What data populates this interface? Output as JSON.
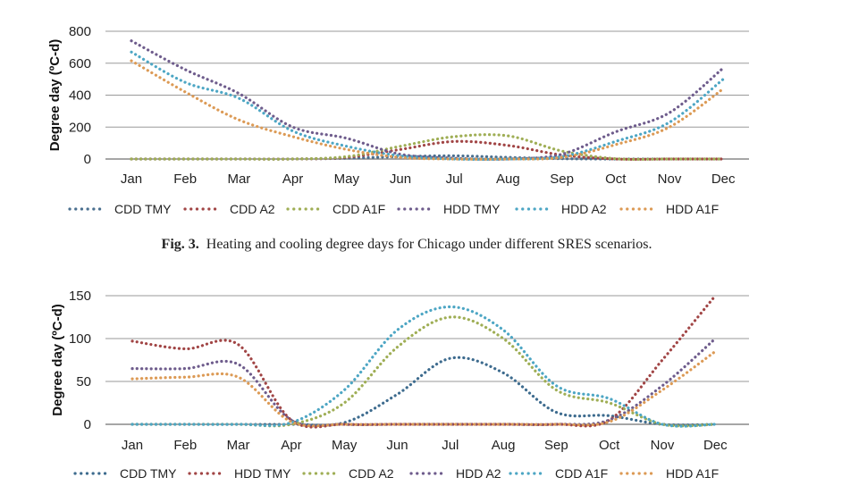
{
  "caption": {
    "label": "Fig. 3.",
    "text": "Heating and cooling degree days for Chicago under different SRES scenarios."
  },
  "chart_data": [
    {
      "type": "line",
      "title": "",
      "xlabel": "",
      "ylabel": "Degree day (ºC-d)",
      "ylim": [
        0,
        800
      ],
      "yticks": [
        "0",
        "200",
        "400",
        "600",
        "800"
      ],
      "grid": true,
      "legend_position": "bottom",
      "categories": [
        "Jan",
        "Feb",
        "Mar",
        "Apr",
        "May",
        "Jun",
        "Jul",
        "Aug",
        "Sep",
        "Oct",
        "Nov",
        "Dec"
      ],
      "series": [
        {
          "name": "CDD TMY",
          "color": "#4a6f8f",
          "values": [
            0,
            0,
            0,
            0,
            5,
            15,
            20,
            10,
            2,
            0,
            0,
            0
          ]
        },
        {
          "name": "CDD A2",
          "color": "#a14545",
          "values": [
            0,
            0,
            0,
            0,
            10,
            60,
            110,
            85,
            25,
            0,
            0,
            0
          ]
        },
        {
          "name": "CDD A1F",
          "color": "#9fae55",
          "values": [
            0,
            0,
            0,
            0,
            15,
            80,
            140,
            145,
            50,
            2,
            0,
            0
          ]
        },
        {
          "name": "HDD TMY",
          "color": "#6e5c8c",
          "values": [
            740,
            560,
            410,
            200,
            130,
            30,
            5,
            0,
            30,
            170,
            290,
            570
          ]
        },
        {
          "name": "HDD A2",
          "color": "#4da6c4",
          "values": [
            670,
            480,
            380,
            175,
            80,
            20,
            0,
            0,
            15,
            110,
            230,
            500
          ]
        },
        {
          "name": "HDD A1F",
          "color": "#dc9a55",
          "values": [
            615,
            420,
            245,
            140,
            60,
            10,
            0,
            0,
            10,
            90,
            200,
            440
          ]
        }
      ]
    },
    {
      "type": "line",
      "title": "",
      "xlabel": "",
      "ylabel": "Degree day (ºC-d)",
      "ylim": [
        0,
        150
      ],
      "yticks": [
        "0",
        "50",
        "100",
        "150"
      ],
      "grid": true,
      "legend_position": "bottom",
      "categories": [
        "Jan",
        "Feb",
        "Mar",
        "Apr",
        "May",
        "Jun",
        "Jul",
        "Aug",
        "Sep",
        "Oct",
        "Nov",
        "Dec"
      ],
      "series": [
        {
          "name": "CDD TMY",
          "color": "#3d6b8e",
          "values": [
            0,
            0,
            0,
            0,
            2,
            35,
            77,
            60,
            14,
            10,
            0,
            0
          ]
        },
        {
          "name": "HDD TMY",
          "color": "#a14545",
          "values": [
            97,
            88,
            93,
            5,
            0,
            0,
            0,
            0,
            0,
            5,
            75,
            150
          ]
        },
        {
          "name": "CDD A2",
          "color": "#9fae55",
          "values": [
            0,
            0,
            0,
            0,
            25,
            90,
            125,
            100,
            40,
            25,
            0,
            0
          ]
        },
        {
          "name": "HDD A2",
          "color": "#6e5c8c",
          "values": [
            65,
            65,
            70,
            5,
            0,
            0,
            0,
            0,
            0,
            5,
            45,
            100
          ]
        },
        {
          "name": "CDD A1F",
          "color": "#4da6c4",
          "values": [
            0,
            0,
            0,
            2,
            40,
            110,
            137,
            110,
            45,
            30,
            0,
            0
          ]
        },
        {
          "name": "HDD A1F",
          "color": "#dc9a55",
          "values": [
            53,
            55,
            55,
            3,
            0,
            0,
            0,
            0,
            0,
            3,
            40,
            85
          ]
        }
      ]
    }
  ]
}
